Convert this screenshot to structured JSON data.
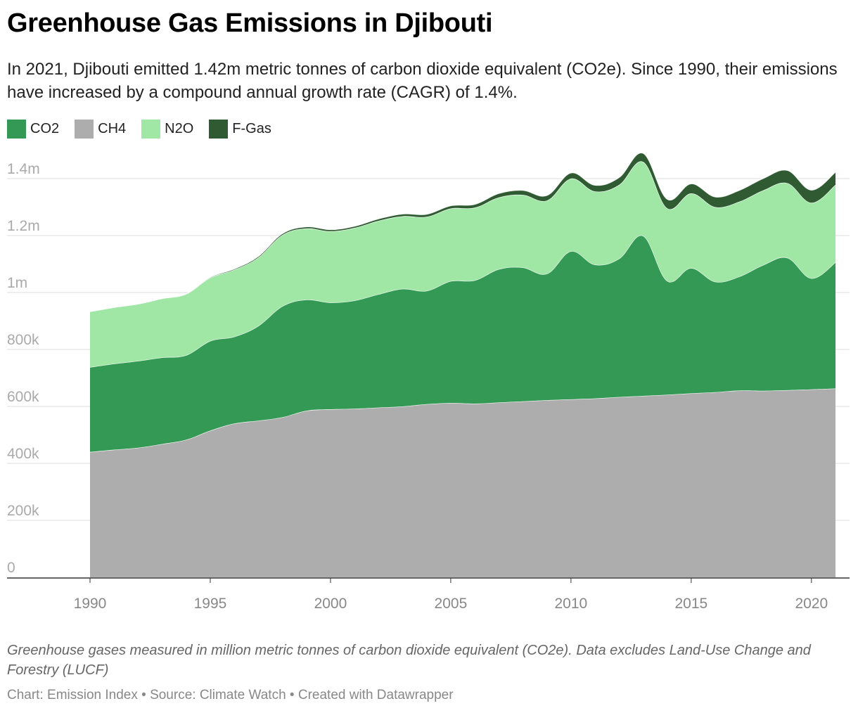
{
  "title": "Greenhouse Gas Emissions in Djibouti",
  "subtitle": "In 2021, Djibouti emitted 1.42m metric tonnes of carbon dioxide equivalent (CO2e). Since 1990, their emissions have increased by a compound annual growth rate (CAGR) of 1.4%.",
  "notes": "Greenhouse gases measured in million metric tonnes of carbon dioxide equivalent (CO2e). Data excludes Land-Use Change and Forestry (LUCF)",
  "credits": "Chart: Emission Index • Source: Climate Watch • Created with Datawrapper",
  "colors": {
    "CO2": "#339955",
    "CH4": "#adadad",
    "N2O": "#a0e6a5",
    "F-Gas": "#2f5a32",
    "grid": "#dddddd",
    "tick": "#aaaaaa",
    "xtick": "#888888"
  },
  "chart_data": {
    "type": "area",
    "stacked": true,
    "x": [
      1990,
      1991,
      1992,
      1993,
      1994,
      1995,
      1996,
      1997,
      1998,
      1999,
      2000,
      2001,
      2002,
      2003,
      2004,
      2005,
      2006,
      2007,
      2008,
      2009,
      2010,
      2011,
      2012,
      2013,
      2014,
      2015,
      2016,
      2017,
      2018,
      2019,
      2020,
      2021
    ],
    "series": [
      {
        "name": "CH4",
        "values": [
          440000,
          448000,
          455000,
          468000,
          483000,
          515000,
          540000,
          550000,
          562000,
          585000,
          590000,
          592000,
          596000,
          600000,
          608000,
          612000,
          610000,
          614000,
          618000,
          622000,
          625000,
          628000,
          633000,
          637000,
          641000,
          646000,
          650000,
          656000,
          655000,
          657000,
          660000,
          663000
        ]
      },
      {
        "name": "CO2",
        "values": [
          298000,
          302000,
          305000,
          304000,
          297000,
          315000,
          305000,
          333000,
          390000,
          390000,
          375000,
          380000,
          398000,
          413000,
          398000,
          428000,
          433000,
          468000,
          470000,
          444000,
          520000,
          470000,
          486000,
          562000,
          400000,
          440000,
          388000,
          400000,
          442000,
          465000,
          390000,
          443000
        ]
      },
      {
        "name": "N2O",
        "values": [
          195000,
          198000,
          200000,
          207000,
          215000,
          222000,
          235000,
          240000,
          250000,
          250000,
          250000,
          255000,
          258000,
          255000,
          260000,
          255000,
          255000,
          252000,
          255000,
          257000,
          255000,
          257000,
          259000,
          260000,
          255000,
          262000,
          262000,
          263000,
          262000,
          262000,
          265000,
          272000
        ]
      },
      {
        "name": "F-Gas",
        "values": [
          0,
          0,
          0,
          0,
          0,
          2000,
          3000,
          4000,
          5000,
          6000,
          6000,
          6000,
          7000,
          8000,
          9000,
          10000,
          12000,
          14000,
          16000,
          18000,
          20000,
          22000,
          26000,
          30000,
          32000,
          34000,
          36000,
          40000,
          42000,
          45000,
          45000,
          45000
        ]
      }
    ],
    "ylim": [
      0,
      1400000
    ],
    "yticks": [
      0,
      200000,
      400000,
      600000,
      800000,
      1000000,
      1200000,
      1400000
    ],
    "ytick_labels": [
      "0",
      "200k",
      "400k",
      "600k",
      "800k",
      "1m",
      "1.2m",
      "1.4m"
    ],
    "xticks": [
      1990,
      1995,
      2000,
      2005,
      2010,
      2015,
      2020
    ],
    "xtick_labels": [
      "1990",
      "1995",
      "2000",
      "2005",
      "2010",
      "2015",
      "2020"
    ],
    "legend": [
      "CO2",
      "CH4",
      "N2O",
      "F-Gas"
    ],
    "legend_position": "top-left",
    "grid": true
  }
}
